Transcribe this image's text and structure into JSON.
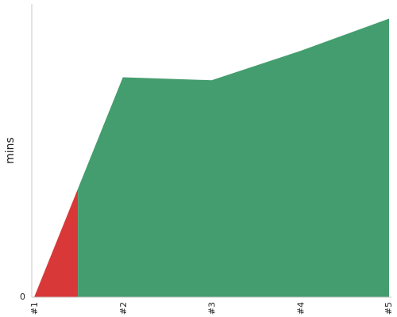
{
  "chart_data": {
    "type": "area",
    "ylabel": "mins",
    "y_tick_labels": [
      "0"
    ],
    "ylim": [
      0,
      100
    ],
    "grid": false,
    "categories": [
      "#1",
      "#2",
      "#3",
      "#4",
      "#5"
    ],
    "series": [
      {
        "values": [
          0,
          75,
          74,
          84,
          95
        ],
        "color": "#449d6e",
        "negative_color": "#d93838",
        "threshold": 37
      }
    ]
  }
}
